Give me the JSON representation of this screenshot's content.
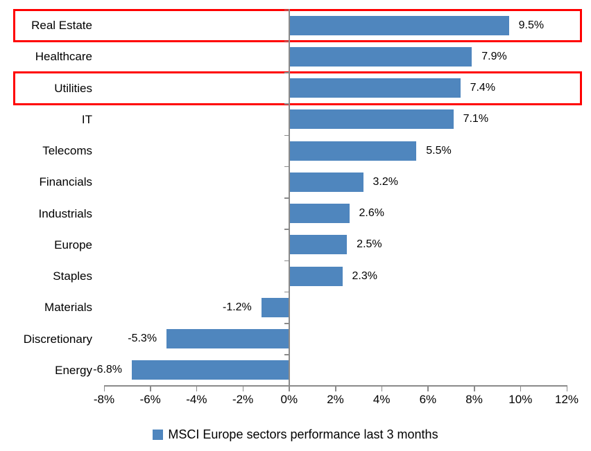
{
  "chart_data": {
    "type": "bar",
    "orientation": "horizontal",
    "categories": [
      "Real Estate",
      "Healthcare",
      "Utilities",
      "IT",
      "Telecoms",
      "Financials",
      "Industrials",
      "Europe",
      "Staples",
      "Materials",
      "Discretionary",
      "Energy"
    ],
    "values": [
      9.5,
      7.9,
      7.4,
      7.1,
      5.5,
      3.2,
      2.6,
      2.5,
      2.3,
      -1.2,
      -5.3,
      -6.8
    ],
    "value_labels": [
      "9.5%",
      "7.9%",
      "7.4%",
      "7.1%",
      "5.5%",
      "3.2%",
      "2.6%",
      "2.5%",
      "2.3%",
      "-1.2%",
      "-5.3%",
      "-6.8%"
    ],
    "xlim": [
      -8,
      12
    ],
    "x_ticks": [
      -8,
      -6,
      -4,
      -2,
      0,
      2,
      4,
      6,
      8,
      10,
      12
    ],
    "x_tick_labels": [
      "-8%",
      "-6%",
      "-4%",
      "-2%",
      "0%",
      "2%",
      "4%",
      "6%",
      "8%",
      "10%",
      "12%"
    ],
    "grid": false,
    "data_labels": "outside-end",
    "legend_position": "bottom",
    "legend_label": "MSCI Europe sectors performance last 3 months",
    "highlighted_categories": [
      "Real Estate",
      "Utilities"
    ],
    "colors": {
      "bar": "#4F86BE",
      "axis": "#8A8A8A",
      "highlight_box": "#FF0000",
      "text": "#000000",
      "background": "#FFFFFF"
    }
  }
}
